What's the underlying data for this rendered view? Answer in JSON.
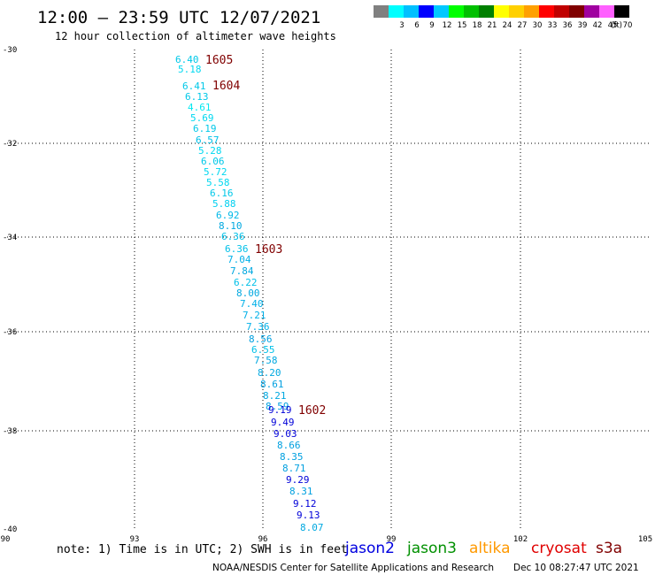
{
  "header": {
    "title": "12:00 – 23:59 UTC 12/07/2021",
    "subtitle": "12 hour collection of altimeter wave heights"
  },
  "color_scale": {
    "unit": "(ft)",
    "swatches": [
      {
        "label": "",
        "color": "#808080"
      },
      {
        "label": "3",
        "color": "#00ffff"
      },
      {
        "label": "6",
        "color": "#00c0ff"
      },
      {
        "label": "9",
        "color": "#0000ff"
      },
      {
        "label": "12",
        "color": "#00c8ff"
      },
      {
        "label": "15",
        "color": "#00ff00"
      },
      {
        "label": "18",
        "color": "#00c000"
      },
      {
        "label": "21",
        "color": "#008000"
      },
      {
        "label": "24",
        "color": "#ffff00"
      },
      {
        "label": "27",
        "color": "#ffd000"
      },
      {
        "label": "30",
        "color": "#ffa000"
      },
      {
        "label": "33",
        "color": "#ff0000"
      },
      {
        "label": "36",
        "color": "#c00000"
      },
      {
        "label": "39",
        "color": "#800000"
      },
      {
        "label": "42",
        "color": "#a000a0"
      },
      {
        "label": "45",
        "color": "#ff60ff"
      },
      {
        "label": "70",
        "color": "#000000"
      }
    ]
  },
  "axes": {
    "lon_ticks": [
      "90",
      "93",
      "96",
      "99",
      "102",
      "105"
    ],
    "lat_ticks": [
      "-30",
      "-32",
      "-34",
      "-36",
      "-38",
      "-40"
    ]
  },
  "observations": [
    {
      "v": "6.40",
      "c": "#00c8e8"
    },
    {
      "v": "5.18",
      "c": "#00d8f0"
    },
    {
      "v": "6.41",
      "c": "#00c8e8"
    },
    {
      "v": "6.13",
      "c": "#00c8e8"
    },
    {
      "v": "4.61",
      "c": "#00e8f0"
    },
    {
      "v": "5.69",
      "c": "#00d8f0"
    },
    {
      "v": "6.19",
      "c": "#00c8e8"
    },
    {
      "v": "6.57",
      "c": "#00c0e8"
    },
    {
      "v": "5.28",
      "c": "#00d8f0"
    },
    {
      "v": "6.06",
      "c": "#00c8e8"
    },
    {
      "v": "5.72",
      "c": "#00d8f0"
    },
    {
      "v": "5.58",
      "c": "#00d8f0"
    },
    {
      "v": "6.16",
      "c": "#00c8e8"
    },
    {
      "v": "5.88",
      "c": "#00d0f0"
    },
    {
      "v": "6.92",
      "c": "#00b8e8"
    },
    {
      "v": "8.10",
      "c": "#00a8e0"
    },
    {
      "v": "6.36",
      "c": "#00c0e8"
    },
    {
      "v": "6.36",
      "c": "#00c0e8"
    },
    {
      "v": "7.04",
      "c": "#00b0e8"
    },
    {
      "v": "7.84",
      "c": "#00a8e0"
    },
    {
      "v": "6.22",
      "c": "#00c0e8"
    },
    {
      "v": "8.00",
      "c": "#00a8e0"
    },
    {
      "v": "7.40",
      "c": "#00b0e8"
    },
    {
      "v": "7.21",
      "c": "#00b0e8"
    },
    {
      "v": "7.36",
      "c": "#00b0e8"
    },
    {
      "v": "8.56",
      "c": "#00a0e0"
    },
    {
      "v": "6.55",
      "c": "#00c0e8"
    },
    {
      "v": "7.58",
      "c": "#00a8e0"
    },
    {
      "v": "8.20",
      "c": "#00a8e0"
    },
    {
      "v": "8.61",
      "c": "#00a0e0"
    },
    {
      "v": "8.21",
      "c": "#00a8e0"
    },
    {
      "v": "8.59",
      "c": "#00a0e0"
    },
    {
      "v": "9.19",
      "c": "#0000d8"
    },
    {
      "v": "9.49",
      "c": "#0000d8"
    },
    {
      "v": "9.03",
      "c": "#0000d8"
    },
    {
      "v": "8.66",
      "c": "#00a0e0"
    },
    {
      "v": "8.35",
      "c": "#00a0e0"
    },
    {
      "v": "8.71",
      "c": "#00a0e0"
    },
    {
      "v": "9.29",
      "c": "#0000d8"
    },
    {
      "v": "8.31",
      "c": "#00a0e0"
    },
    {
      "v": "9.12",
      "c": "#0000d8"
    },
    {
      "v": "9.13",
      "c": "#0000d8"
    },
    {
      "v": "8.07",
      "c": "#00a8e0"
    }
  ],
  "time_labels": [
    "1605",
    "1604",
    "1603",
    "1602"
  ],
  "note": "note: 1) Time is in UTC; 2) SWH is in feet",
  "satellites": [
    {
      "name": "jason2",
      "color": "#0000e0"
    },
    {
      "name": "jason3",
      "color": "#009000"
    },
    {
      "name": "altika",
      "color": "#ff9900"
    },
    {
      "name": "cryosat",
      "color": "#e00000"
    },
    {
      "name": "s3a",
      "color": "#800000"
    }
  ],
  "credit": "NOAA/NESDIS Center for Satellite Applications and Research",
  "timestamp": "Dec 10 08:27:47 UTC 2021"
}
